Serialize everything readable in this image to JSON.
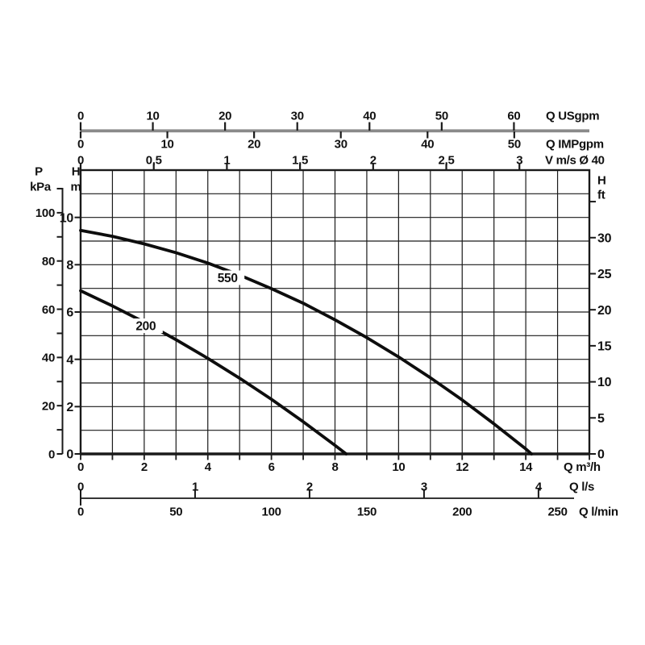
{
  "colors": {
    "line": "#1a1a1a",
    "curve": "#0d0d0d",
    "text": "#111111",
    "gpm_bar": "#8a8a8a",
    "background": "#ffffff"
  },
  "chart_data": {
    "type": "line",
    "title": "",
    "grid": "on",
    "legend": "inline-curve-labels",
    "x_axis": {
      "label": "Q m³/h",
      "range": [
        0,
        16
      ],
      "gridline_step": 1
    },
    "y_axis": {
      "label": "H m",
      "range": [
        0,
        12
      ],
      "gridline_step": 1
    },
    "series": [
      {
        "name": "550",
        "label": "550",
        "label_q": 4.62,
        "label_h": 7.45,
        "points_q_h": [
          [
            0,
            9.45
          ],
          [
            1,
            9.2
          ],
          [
            2,
            8.88
          ],
          [
            3,
            8.51
          ],
          [
            4,
            8.07
          ],
          [
            5,
            7.56
          ],
          [
            6,
            6.99
          ],
          [
            7,
            6.37
          ],
          [
            8,
            5.67
          ],
          [
            9,
            4.92
          ],
          [
            10,
            4.1
          ],
          [
            11,
            3.22
          ],
          [
            12,
            2.28
          ],
          [
            13,
            1.27
          ],
          [
            14,
            0.21
          ],
          [
            14.18,
            0
          ]
        ]
      },
      {
        "name": "200",
        "label": "200",
        "label_q": 2.05,
        "label_h": 5.42,
        "points_q_h": [
          [
            0,
            6.9
          ],
          [
            1,
            6.26
          ],
          [
            2,
            5.57
          ],
          [
            3,
            4.83
          ],
          [
            4,
            4.04
          ],
          [
            5,
            3.2
          ],
          [
            6,
            2.31
          ],
          [
            7,
            1.36
          ],
          [
            8,
            0.36
          ],
          [
            8.35,
            0
          ]
        ]
      }
    ],
    "top_axes": [
      {
        "id": "usgpm",
        "unit": "Q USgpm",
        "ticks": [
          {
            "label": "0",
            "q": 0
          },
          {
            "label": "10",
            "q": 2.2712
          },
          {
            "label": "20",
            "q": 4.5424
          },
          {
            "label": "30",
            "q": 6.8137
          },
          {
            "label": "40",
            "q": 9.0849
          },
          {
            "label": "50",
            "q": 11.3561
          },
          {
            "label": "60",
            "q": 13.6273
          }
        ]
      },
      {
        "id": "impgpm",
        "unit": "Q IMPgpm",
        "ticks": [
          {
            "label": "0",
            "q": 0
          },
          {
            "label": "10",
            "q": 2.7276
          },
          {
            "label": "20",
            "q": 5.4552
          },
          {
            "label": "30",
            "q": 8.1828
          },
          {
            "label": "40",
            "q": 10.9104
          },
          {
            "label": "50",
            "q": 13.638
          }
        ]
      },
      {
        "id": "vms",
        "unit": "V m/s Ø 40",
        "ticks": [
          {
            "label": "0",
            "q": 0
          },
          {
            "label": "0,5",
            "q": 2.3
          },
          {
            "label": "1",
            "q": 4.6
          },
          {
            "label": "1,5",
            "q": 6.9
          },
          {
            "label": "2",
            "q": 9.2
          },
          {
            "label": "2,5",
            "q": 11.5
          },
          {
            "label": "3",
            "q": 13.8
          }
        ]
      }
    ],
    "bottom_axes": [
      {
        "id": "m3h",
        "unit": "Q m³/h",
        "minor_tick_step": 1,
        "ticks": [
          {
            "label": "0",
            "q": 0
          },
          {
            "label": "2",
            "q": 2
          },
          {
            "label": "4",
            "q": 4
          },
          {
            "label": "6",
            "q": 6
          },
          {
            "label": "8",
            "q": 8
          },
          {
            "label": "10",
            "q": 10
          },
          {
            "label": "12",
            "q": 12
          },
          {
            "label": "14",
            "q": 14
          }
        ]
      },
      {
        "id": "ls",
        "unit": "Q l/s",
        "ticks": [
          {
            "label": "0",
            "q": 0
          },
          {
            "label": "1",
            "q": 3.6
          },
          {
            "label": "2",
            "q": 7.2
          },
          {
            "label": "3",
            "q": 10.8
          },
          {
            "label": "4",
            "q": 14.4
          }
        ]
      },
      {
        "id": "lmin",
        "unit": "Q l/min",
        "ticks": [
          {
            "label": "0",
            "q": 0
          },
          {
            "label": "50",
            "q": 3
          },
          {
            "label": "100",
            "q": 6
          },
          {
            "label": "150",
            "q": 9
          },
          {
            "label": "200",
            "q": 12
          },
          {
            "label": "250",
            "q": 15
          }
        ]
      }
    ],
    "left_axes": [
      {
        "id": "kpa",
        "header": [
          "P",
          "kPa"
        ],
        "ticks": [
          {
            "label": "0",
            "h": 0
          },
          {
            "label": "",
            "h": 1.0197
          },
          {
            "label": "20",
            "h": 2.0394
          },
          {
            "label": "",
            "h": 3.0592
          },
          {
            "label": "40",
            "h": 4.0789
          },
          {
            "label": "",
            "h": 5.0986
          },
          {
            "label": "60",
            "h": 6.1183
          },
          {
            "label": "",
            "h": 7.138
          },
          {
            "label": "80",
            "h": 8.1577
          },
          {
            "label": "",
            "h": 9.1775
          },
          {
            "label": "100",
            "h": 10.1972
          },
          {
            "label": "",
            "h": 11.2169
          }
        ]
      },
      {
        "id": "hm",
        "header": [
          "H",
          "m"
        ],
        "ticks": [
          {
            "label": "0",
            "h": 0
          },
          {
            "label": "2",
            "h": 2
          },
          {
            "label": "4",
            "h": 4
          },
          {
            "label": "6",
            "h": 6
          },
          {
            "label": "8",
            "h": 8
          },
          {
            "label": "10",
            "h": 10
          }
        ]
      }
    ],
    "right_axes": [
      {
        "id": "ft",
        "header": [
          "H",
          "ft"
        ],
        "ticks": [
          {
            "label": "0",
            "h": 0
          },
          {
            "label": "5",
            "h": 1.524
          },
          {
            "label": "10",
            "h": 3.048
          },
          {
            "label": "15",
            "h": 4.572
          },
          {
            "label": "20",
            "h": 6.096
          },
          {
            "label": "25",
            "h": 7.62
          },
          {
            "label": "30",
            "h": 9.144
          },
          {
            "label": "",
            "h": 10.668
          }
        ]
      }
    ]
  }
}
